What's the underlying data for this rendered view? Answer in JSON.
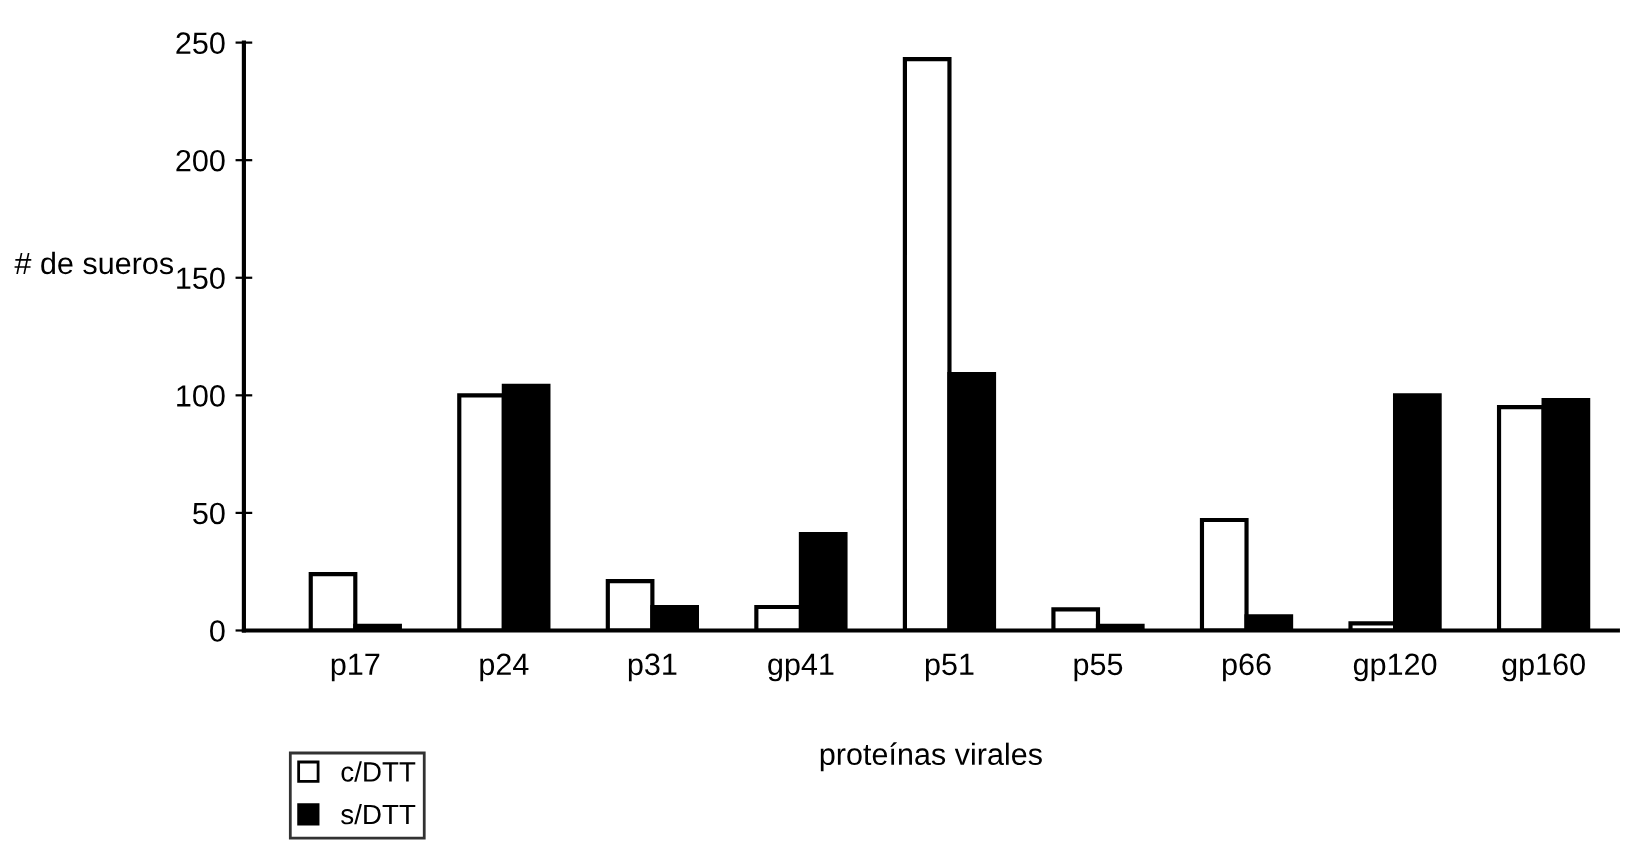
{
  "chart_data": {
    "type": "bar",
    "xlabel": "proteínas virales",
    "ylabel": "# de sueros",
    "categories": [
      "p17",
      "p24",
      "p31",
      "gp41",
      "p51",
      "p55",
      "p66",
      "gp120",
      "gp160"
    ],
    "series": [
      {
        "name": "c/DTT",
        "color": "#ffffff",
        "values": [
          24,
          100,
          21,
          10,
          243,
          9,
          47,
          3,
          95
        ]
      },
      {
        "name": "s/DTT",
        "color": "#000000",
        "values": [
          2,
          104,
          10,
          41,
          109,
          2,
          6,
          100,
          98
        ]
      }
    ],
    "ylim": [
      0,
      250
    ],
    "yticks": [
      0,
      50,
      100,
      150,
      200,
      250
    ],
    "legend": "bottom left",
    "grid": false
  }
}
